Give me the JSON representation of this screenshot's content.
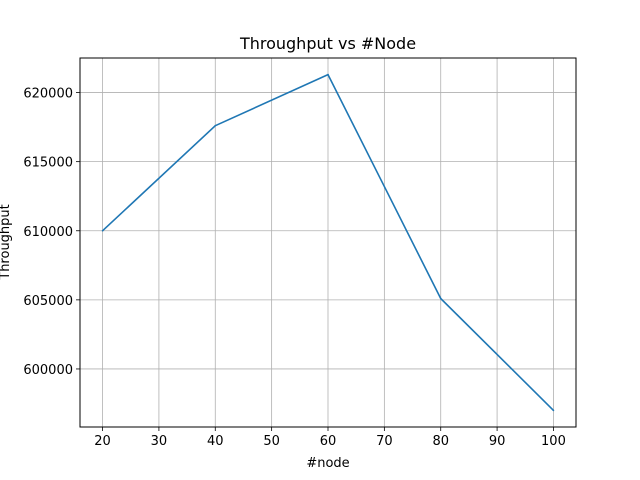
{
  "chart_data": {
    "type": "line",
    "title": "Throughput vs #Node",
    "xlabel": "#node",
    "ylabel": "Throughput",
    "x": [
      20,
      40,
      60,
      80,
      100
    ],
    "series": [
      {
        "values": [
          610000,
          617600,
          621300,
          605100,
          597000
        ]
      }
    ],
    "xticks": [
      20,
      30,
      40,
      50,
      60,
      70,
      80,
      90,
      100
    ],
    "yticks": [
      600000,
      605000,
      610000,
      615000,
      620000
    ],
    "xlim": [
      16,
      104
    ],
    "ylim": [
      595800,
      622500
    ],
    "grid": true,
    "legend": "none",
    "colors": {
      "line": "#1f77b4",
      "grid": "#b0b0b0",
      "axes": "#000000"
    }
  }
}
